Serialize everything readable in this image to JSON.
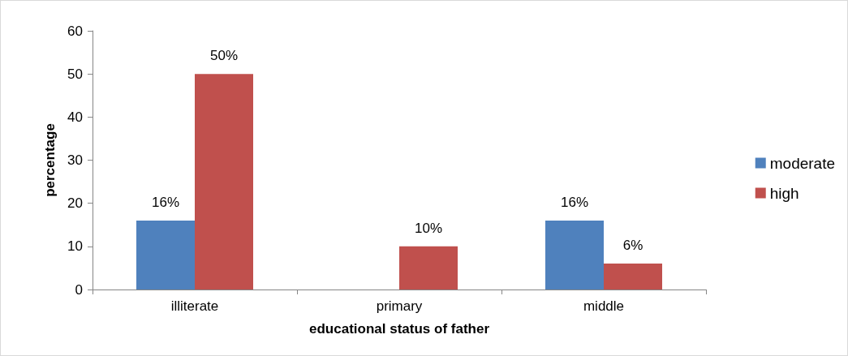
{
  "chart_data": {
    "type": "bar",
    "xlabel": "educational status of father",
    "ylabel": "percentage",
    "categories": [
      "illiterate",
      "primary",
      "middle"
    ],
    "series": [
      {
        "name": "moderate",
        "color": "#4f81bd",
        "values": [
          16,
          null,
          16
        ],
        "value_labels": [
          "16%",
          null,
          "16%"
        ]
      },
      {
        "name": "high",
        "color": "#c0504d",
        "values": [
          50,
          10,
          6
        ],
        "value_labels": [
          "50%",
          "10%",
          "6%"
        ]
      }
    ],
    "ylim": [
      0,
      60
    ],
    "yticks": [
      0,
      10,
      20,
      30,
      40,
      50,
      60
    ],
    "grid": false,
    "legend": "right"
  }
}
